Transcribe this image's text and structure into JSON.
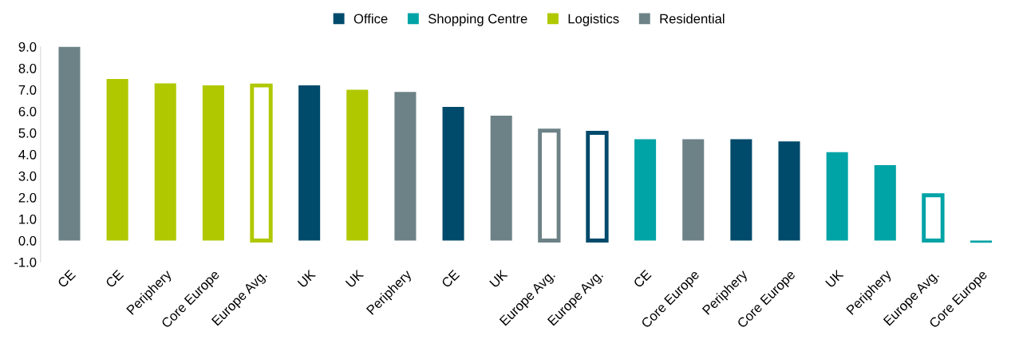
{
  "chart_data": {
    "type": "bar",
    "categories": [
      "CE",
      "CE",
      "Periphery",
      "Core Europe",
      "Europe Avg.",
      "UK",
      "UK",
      "Periphery",
      "CE",
      "UK",
      "Europe Avg.",
      "Europe Avg.",
      "CE",
      "Core Europe",
      "Periphery",
      "Core Europe",
      "UK",
      "Periphery",
      "Europe Avg.",
      "Core Europe"
    ],
    "series": [
      {
        "name": "Office",
        "color": "#004a6b",
        "values": [
          null,
          null,
          null,
          null,
          null,
          7.2,
          null,
          null,
          6.2,
          null,
          null,
          null,
          null,
          null,
          4.7,
          4.6,
          null,
          null,
          null,
          null
        ]
      },
      {
        "name": "Shopping Centre",
        "color": "#00a3a6",
        "values": [
          null,
          null,
          null,
          null,
          null,
          null,
          null,
          null,
          null,
          null,
          null,
          null,
          4.7,
          null,
          null,
          null,
          4.1,
          3.5,
          null,
          -0.1
        ]
      },
      {
        "name": "Logistics",
        "color": "#b0c800",
        "values": [
          null,
          7.5,
          7.3,
          7.2,
          null,
          null,
          7.0,
          null,
          null,
          null,
          null,
          null,
          null,
          null,
          null,
          null,
          null,
          null,
          null,
          null
        ]
      },
      {
        "name": "Residential",
        "color": "#6d8287",
        "values": [
          9.0,
          null,
          null,
          null,
          null,
          null,
          null,
          6.9,
          null,
          5.8,
          null,
          null,
          null,
          4.7,
          null,
          null,
          null,
          null,
          null,
          null
        ]
      },
      {
        "color": "#b0c800",
        "values": [
          null,
          null,
          null,
          null,
          7.2,
          null,
          null,
          null,
          null,
          null,
          null,
          null,
          null,
          null,
          null,
          null,
          null,
          null,
          null,
          null
        ]
      },
      {
        "color": "#6d8287",
        "values": [
          null,
          null,
          null,
          null,
          null,
          null,
          null,
          null,
          null,
          null,
          5.1,
          null,
          null,
          null,
          null,
          null,
          null,
          null,
          null,
          null
        ]
      },
      {
        "color": "#004a6b",
        "values": [
          null,
          null,
          null,
          null,
          null,
          null,
          null,
          null,
          null,
          null,
          null,
          5.0,
          null,
          null,
          null,
          null,
          null,
          null,
          null,
          null
        ]
      },
      {
        "color": "#00a3a6",
        "values": [
          null,
          null,
          null,
          null,
          null,
          null,
          null,
          null,
          null,
          null,
          null,
          null,
          null,
          null,
          null,
          null,
          null,
          null,
          2.1,
          null
        ]
      }
    ],
    "ylim": [
      -1,
      9
    ],
    "yticks": [
      {
        "value": -1,
        "label": "-1.0"
      },
      {
        "value": 0,
        "label": "0.0"
      },
      {
        "value": 1,
        "label": "1.0"
      },
      {
        "value": 2,
        "label": "2.0"
      },
      {
        "value": 3,
        "label": "3.0"
      },
      {
        "value": 4,
        "label": "4.0"
      },
      {
        "value": 5,
        "label": "5.0"
      },
      {
        "value": 6,
        "label": "6.0"
      },
      {
        "value": 7,
        "label": "7.0"
      },
      {
        "value": 8,
        "label": "8.0"
      },
      {
        "value": 9,
        "label": "9.0"
      }
    ],
    "legend": "top"
  }
}
